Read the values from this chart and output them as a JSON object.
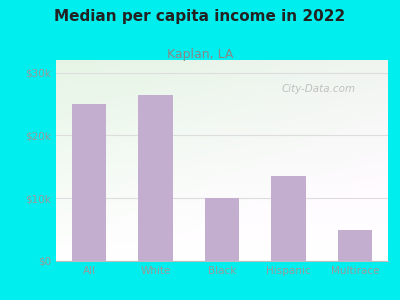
{
  "title": "Median per capita income in 2022",
  "subtitle": "Kaplan, LA",
  "categories": [
    "All",
    "White",
    "Black",
    "Hispanic",
    "Multirace"
  ],
  "values": [
    25000,
    26500,
    10000,
    13500,
    5000
  ],
  "bar_color": "#c4aed0",
  "title_fontsize": 11,
  "subtitle_fontsize": 9,
  "subtitle_color": "#888888",
  "title_color": "#222222",
  "background_outer": "#00eeee",
  "yticks": [
    0,
    10000,
    20000,
    30000
  ],
  "ytick_labels": [
    "$0",
    "$10k",
    "$20k",
    "$30k"
  ],
  "ylim": [
    0,
    32000
  ],
  "watermark": "City-Data.com",
  "tick_color": "#999999",
  "grid_color": "#dddddd",
  "inner_bg_left": "#e6f5e6",
  "inner_bg_right": "#f5f5f0"
}
